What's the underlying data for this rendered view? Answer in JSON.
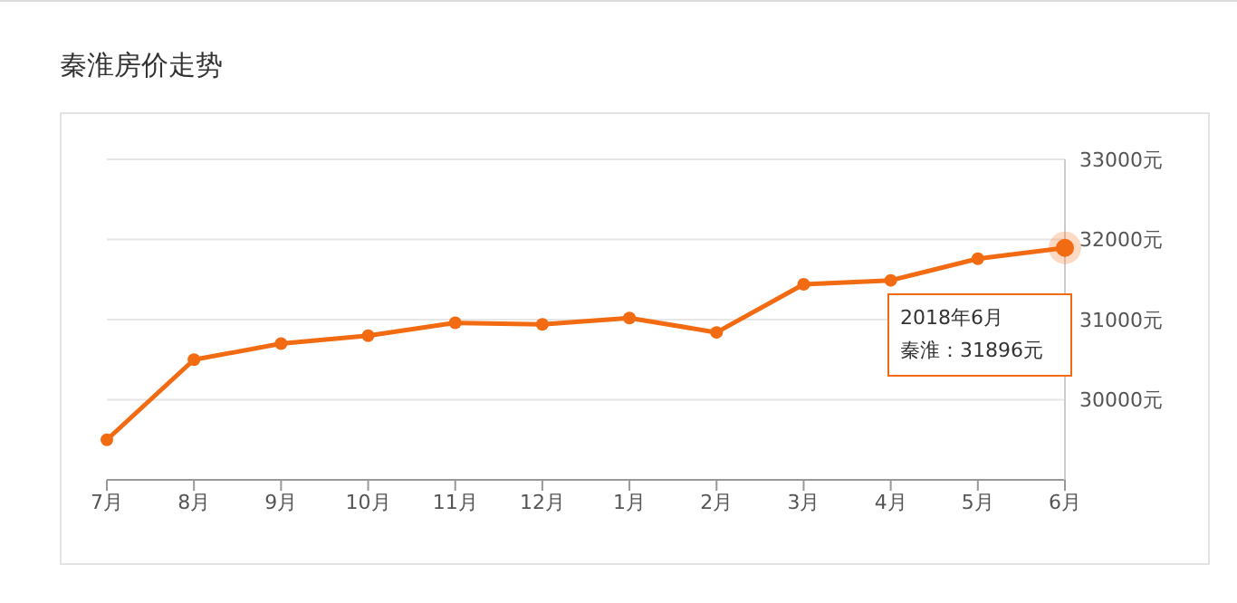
{
  "chart_data": {
    "type": "line",
    "title": "秦淮房价走势",
    "categories": [
      "7月",
      "8月",
      "9月",
      "10月",
      "11月",
      "12月",
      "1月",
      "2月",
      "3月",
      "4月",
      "5月",
      "6月"
    ],
    "series": [
      {
        "color": "#f26b12",
        "values": [
          29500,
          30500,
          30700,
          30800,
          30960,
          30940,
          31020,
          30840,
          31440,
          31490,
          31760,
          31896
        ]
      }
    ],
    "ylim": [
      29000,
      33000
    ],
    "yticks": [
      {
        "value": 30000,
        "label": "30000元"
      },
      {
        "value": 31000,
        "label": "31000元"
      },
      {
        "value": 32000,
        "label": "32000元"
      },
      {
        "value": 33000,
        "label": "33000元"
      }
    ],
    "grid": "y",
    "marker": "circle",
    "line_style": "solid",
    "annotations": [
      "2018年6月",
      "秦淮：31896元"
    ]
  }
}
